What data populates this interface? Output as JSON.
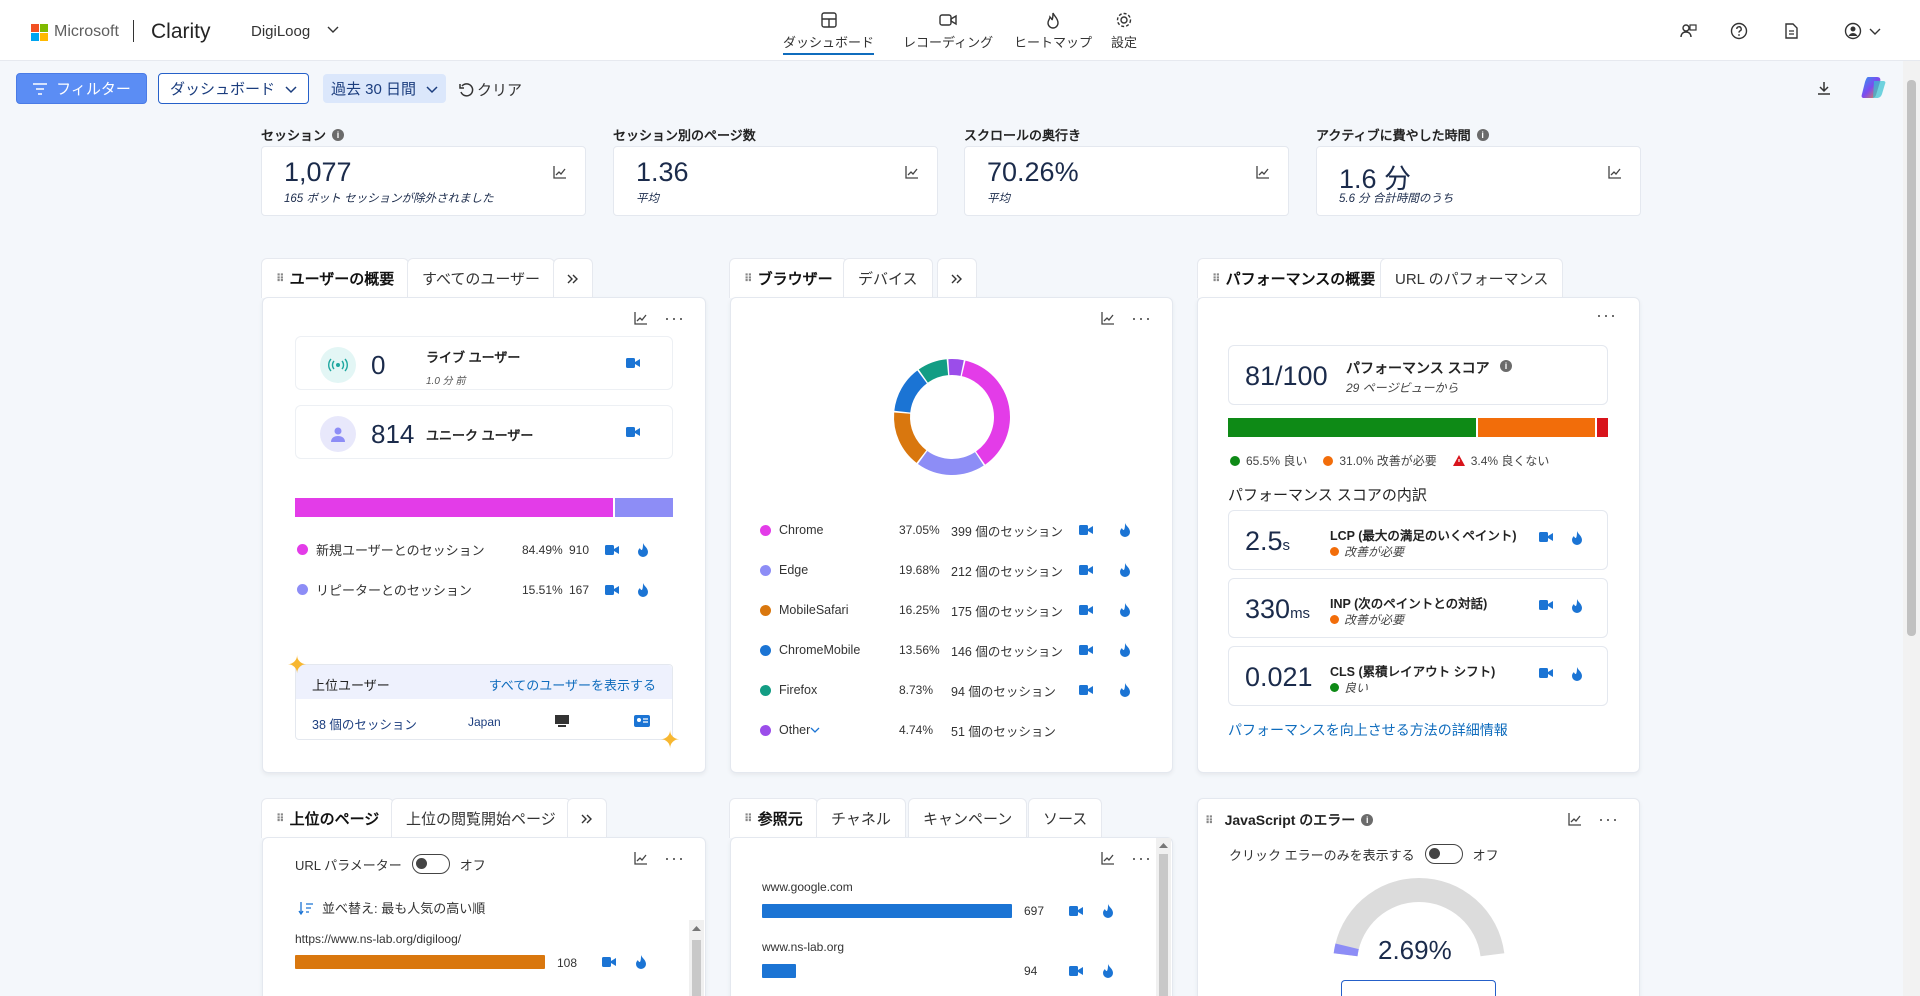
{
  "brand": {
    "microsoft": "Microsoft",
    "product": "Clarity",
    "project": "DigiLoog"
  },
  "nav": [
    {
      "label": "ダッシュボード",
      "icon": "dashboard-icon"
    },
    {
      "label": "レコーディング",
      "icon": "recording-icon"
    },
    {
      "label": "ヒートマップ",
      "icon": "heatmap-icon"
    },
    {
      "label": "設定",
      "icon": "settings-icon"
    }
  ],
  "toolbar": {
    "filter": "フィルター",
    "dashboard": "ダッシュボード",
    "date_range": "過去 30 日間",
    "clear": "クリア"
  },
  "metrics": [
    {
      "label": "セッション",
      "value": "1,077",
      "sub": "165 ボット セッションが除外されました"
    },
    {
      "label": "セッション別のページ数",
      "value": "1.36",
      "sub": "平均"
    },
    {
      "label": "スクロールの奥行き",
      "value": "70.26%",
      "sub": "平均"
    },
    {
      "label": "アクティブに費やした時間",
      "value": "1.6 分",
      "sub": "5.6 分 合計時間のうち"
    }
  ],
  "users": {
    "tabs": [
      "ユーザーの概要",
      "すべてのユーザー"
    ],
    "live": {
      "value": "0",
      "label": "ライブ ユーザー",
      "ago": "1.0 分 前"
    },
    "unique": {
      "value": "814",
      "label": "ユニーク ユーザー"
    },
    "new_share": 0.8449,
    "legend": [
      {
        "label": "新規ユーザーとのセッション",
        "pct": "84.49%",
        "count": "910",
        "color": "#e33ce8"
      },
      {
        "label": "リピーターとのセッション",
        "pct": "15.51%",
        "count": "167",
        "color": "#8d8df6"
      }
    ],
    "top": {
      "title": "上位ユーザー",
      "link": "すべてのユーザーを表示する",
      "sessions": "38 個のセッション",
      "country": "Japan"
    }
  },
  "browsers": {
    "tabs": [
      "ブラウザー",
      "デバイス"
    ],
    "rows": [
      {
        "name": "Chrome",
        "pct": "37.05%",
        "sessions": "399 個のセッション",
        "value": 37.05,
        "color": "#e33ce8"
      },
      {
        "name": "Edge",
        "pct": "19.68%",
        "sessions": "212 個のセッション",
        "value": 19.68,
        "color": "#8d8df6"
      },
      {
        "name": "MobileSafari",
        "pct": "16.25%",
        "sessions": "175 個のセッション",
        "value": 16.25,
        "color": "#d9770e"
      },
      {
        "name": "ChromeMobile",
        "pct": "13.56%",
        "sessions": "146 個のセッション",
        "value": 13.56,
        "color": "#1b74d4"
      },
      {
        "name": "Firefox",
        "pct": "8.73%",
        "sessions": "94 個のセッション",
        "value": 8.73,
        "color": "#139d84"
      },
      {
        "name": "Other",
        "pct": "4.74%",
        "sessions": "51 個のセッション",
        "value": 4.74,
        "color": "#9b4dea"
      }
    ]
  },
  "performance": {
    "tabs": [
      "パフォーマンスの概要",
      "URL のパフォーマンス"
    ],
    "score": "81/100",
    "score_title": "パフォーマンス スコア",
    "score_sub": "29 ページビューから",
    "good": 0.655,
    "improve": 0.31,
    "poor": 0.034,
    "legend": [
      "65.5% 良い",
      "31.0% 改善が必要",
      "3.4% 良くない"
    ],
    "breakdown": "パフォーマンス スコアの内訳",
    "items": [
      {
        "value": "2.5",
        "unit": "s",
        "title": "LCP (最大の満足のいくペイント)",
        "status": "改善が必要",
        "color": "#f26d0a"
      },
      {
        "value": "330",
        "unit": "ms",
        "title": "INP (次のペイントとの対話)",
        "status": "改善が必要",
        "color": "#f26d0a"
      },
      {
        "value": "0.021",
        "unit": "",
        "title": "CLS (累積レイアウト シフト)",
        "status": "良い",
        "color": "#0e8a16"
      }
    ],
    "link": "パフォーマンスを向上させる方法の詳細情報"
  },
  "pages": {
    "tabs": [
      "上位のページ",
      "上位の閲覧開始ページ"
    ],
    "param_label": "URL パラメーター",
    "param_state": "オフ",
    "sort": "並べ替え: 最も人気の高い順",
    "rows": [
      {
        "url": "https://www.ns-lab.org/digiloog/",
        "count": "108",
        "value": 108
      }
    ]
  },
  "referrers": {
    "tabs": [
      "参照元",
      "チャネル",
      "キャンペーン",
      "ソース"
    ],
    "rows": [
      {
        "name": "www.google.com",
        "count": "697",
        "value": 697
      },
      {
        "name": "www.ns-lab.org",
        "count": "94",
        "value": 94
      }
    ]
  },
  "js_errors": {
    "title": "JavaScript のエラー",
    "toggle_label": "クリック エラーのみを表示する",
    "toggle_state": "オフ",
    "pct": "2.69%",
    "value": 2.69
  }
}
